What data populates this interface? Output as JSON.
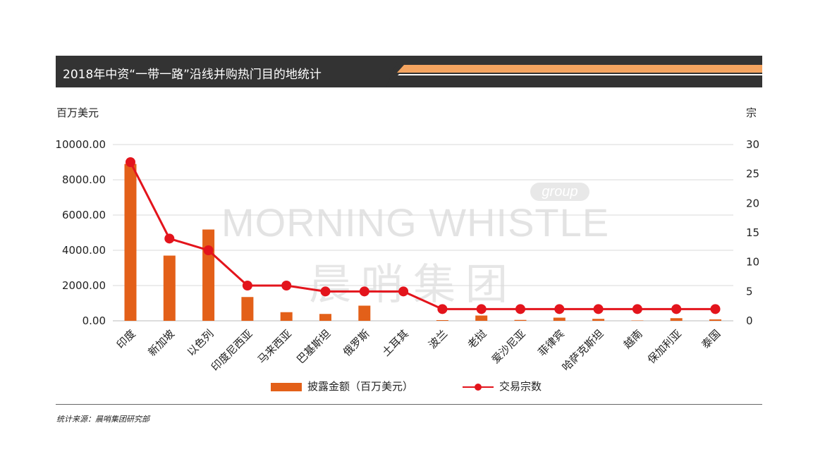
{
  "title": "2018年中资“一带一路”沿线并购热门目的地统计",
  "left_axis_unit": "百万美元",
  "right_axis_unit": "宗",
  "legend": {
    "bar_label": "披露金额（百万美元）",
    "line_label": "交易宗数"
  },
  "source": "统计来源：晨哨集团研究部",
  "watermark": {
    "english": "MORNING WHISTLE",
    "chinese": "晨哨集团",
    "group": "group"
  },
  "colors": {
    "bar": "#e36019",
    "line": "#e3141c",
    "title_bg": "#333333",
    "accent": "#f4a460"
  },
  "chart_data": {
    "type": "bar",
    "categories": [
      "印度",
      "新加坡",
      "以色列",
      "印度尼西亚",
      "马来西亚",
      "巴基斯坦",
      "俄罗斯",
      "土耳其",
      "波兰",
      "老挝",
      "爱沙尼亚",
      "菲律宾",
      "哈萨克斯坦",
      "越南",
      "保加利亚",
      "泰国"
    ],
    "series": [
      {
        "name": "披露金额（百万美元）",
        "type": "bar",
        "axis": "left",
        "values": [
          8900,
          3700,
          5180,
          1350,
          490,
          390,
          860,
          0,
          40,
          300,
          50,
          180,
          110,
          20,
          150,
          80
        ]
      },
      {
        "name": "交易宗数",
        "type": "line",
        "axis": "right",
        "values": [
          27,
          14,
          12,
          6,
          6,
          5,
          5,
          5,
          2,
          2,
          2,
          2,
          2,
          2,
          2,
          2
        ]
      }
    ],
    "y_left": {
      "min": 0,
      "max": 10000,
      "ticks": [
        "0.00",
        "2000.00",
        "4000.00",
        "6000.00",
        "8000.00",
        "10000.00"
      ]
    },
    "y_right": {
      "min": 0,
      "max": 30,
      "ticks": [
        "0",
        "5",
        "10",
        "15",
        "20",
        "25",
        "30"
      ]
    },
    "grid": true,
    "legend_position": "bottom"
  }
}
